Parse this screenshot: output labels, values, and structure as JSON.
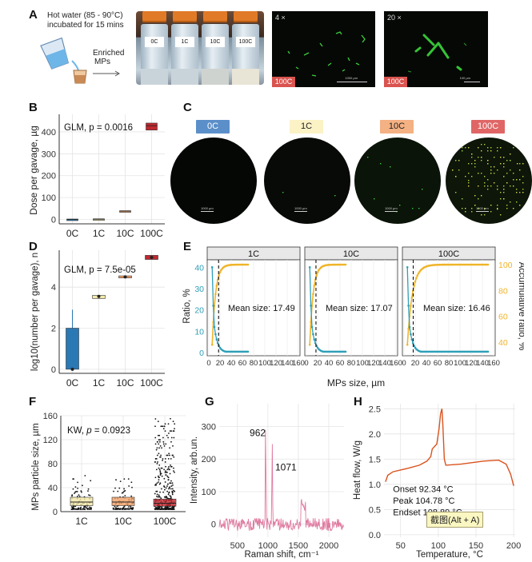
{
  "panel_labels": {
    "a": "A",
    "b": "B",
    "c": "C",
    "d": "D",
    "e": "E",
    "f": "F",
    "g": "G",
    "h": "H"
  },
  "panel_a": {
    "caption_line1": "Hot water (85 - 90°C)",
    "caption_line2": "incubated for 15 mins",
    "enriched_line1": "Enriched",
    "enriched_line2": "MPs",
    "bottles": [
      {
        "label": "0C",
        "liquid": "#c9d4da"
      },
      {
        "label": "1C",
        "liquid": "#c9d4da"
      },
      {
        "label": "10C",
        "liquid": "#cfd3cf"
      },
      {
        "label": "100C",
        "liquid": "#e8e4d6"
      }
    ],
    "micro_left": {
      "mag": "4 ×",
      "tag": "100C",
      "scale": "1000 µm"
    },
    "micro_right": {
      "mag": "20 ×",
      "tag": "100C",
      "scale": "100 µm"
    }
  },
  "panel_c": {
    "dishes": [
      {
        "label": "0C",
        "badge_color": "#5b8fc9",
        "text_color": "#ffffff"
      },
      {
        "label": "1C",
        "badge_color": "#fbf2c6",
        "text_color": "#222222"
      },
      {
        "label": "10C",
        "badge_color": "#f4b183",
        "text_color": "#222222"
      },
      {
        "label": "100C",
        "badge_color": "#e06666",
        "text_color": "#ffffff"
      }
    ],
    "scale": "1000 µm"
  },
  "chart_data": [
    {
      "id": "B",
      "type": "box",
      "title": "",
      "annotation": "GLM, p = 0.0016",
      "ylabel": "Dose per gavage, µg",
      "categories": [
        "0C",
        "1C",
        "10C",
        "100C"
      ],
      "yticks": [
        0,
        100,
        200,
        300,
        400
      ],
      "ylim": [
        -20,
        480
      ],
      "boxes": [
        {
          "q1": 0,
          "median": 0,
          "q3": 2,
          "color": "#2a78b4"
        },
        {
          "q1": 0,
          "median": 1,
          "q3": 3,
          "color": "#f4e9a8"
        },
        {
          "q1": 36,
          "median": 38,
          "q3": 40,
          "color": "#f2a167"
        },
        {
          "q1": 408,
          "median": 428,
          "q3": 440,
          "color": "#c0282f"
        }
      ]
    },
    {
      "id": "D",
      "type": "box",
      "title": "",
      "annotation": "GLM, p = 7.5e-05",
      "ylabel": "log10(number per gavage), n",
      "categories": [
        "0C",
        "1C",
        "10C",
        "100C"
      ],
      "yticks": [
        0,
        2,
        4
      ],
      "ylim": [
        -0.2,
        5.8
      ],
      "boxes": [
        {
          "q1": 0,
          "median": 0,
          "q3": 2,
          "whisker_high": 2.9,
          "color": "#2a78b4"
        },
        {
          "q1": 3.45,
          "median": 3.55,
          "q3": 3.6,
          "color": "#f4e9a8"
        },
        {
          "q1": 4.45,
          "median": 4.5,
          "q3": 4.55,
          "color": "#f2a167"
        },
        {
          "q1": 5.35,
          "median": 5.45,
          "q3": 5.55,
          "color": "#c0282f"
        }
      ]
    },
    {
      "id": "E",
      "type": "line",
      "facets": [
        "1C",
        "10C",
        "100C"
      ],
      "xlabel": "MPs size, µm",
      "ylabel_left": "Ratio, %",
      "ylabel_right": "Accumulative ratio, %",
      "xticks": [
        0,
        20,
        40,
        60,
        80,
        100,
        120,
        140,
        160
      ],
      "yticks_left": [
        0,
        10,
        20,
        30,
        40
      ],
      "yticks_right": [
        40,
        60,
        80,
        100
      ],
      "mean_labels": [
        "Mean size: 17.49",
        "Mean size: 17.07",
        "Mean size: 16.46"
      ],
      "mean_values": [
        17.49,
        17.07,
        16.46
      ],
      "ratio_color": "#2e9fb8",
      "cumulative_color": "#f0b429"
    },
    {
      "id": "F",
      "type": "box",
      "annotation_prefix": "KW, ",
      "annotation_p": "p",
      "annotation_rest": " = 0.0923",
      "ylabel": "MPs particle size, µm",
      "categories": [
        "1C",
        "10C",
        "100C"
      ],
      "yticks": [
        0,
        40,
        80,
        120,
        160
      ],
      "ylim": [
        0,
        160
      ],
      "boxes": [
        {
          "q1": 10,
          "median": 16,
          "q3": 24,
          "color": "#f4e9a8"
        },
        {
          "q1": 10,
          "median": 16,
          "q3": 24,
          "color": "#f2a167"
        },
        {
          "q1": 9,
          "median": 14,
          "q3": 21,
          "color": "#c0282f"
        }
      ]
    },
    {
      "id": "G",
      "type": "line",
      "xlabel": "Raman shift, cm⁻¹",
      "ylabel": "Intensity, arb.un.",
      "xticks": [
        500,
        1000,
        1500,
        2000
      ],
      "yticks": [
        0,
        100,
        200,
        300
      ],
      "peak_labels": [
        "962",
        "1071"
      ],
      "color": "#e07aa0"
    },
    {
      "id": "H",
      "type": "line",
      "xlabel": "Temperature, °C",
      "ylabel": "Heat flow, W/g",
      "xticks": [
        50,
        100,
        150,
        200
      ],
      "yticks": [
        0.0,
        0.5,
        1.0,
        1.5,
        2.0,
        2.5
      ],
      "onset": "Onset 92.34 °C",
      "peak": "Peak 104.78 °C",
      "endset": "Endset 108.89 °C",
      "color": "#d9531e"
    }
  ],
  "overlay_label": "截图(Alt + A)"
}
